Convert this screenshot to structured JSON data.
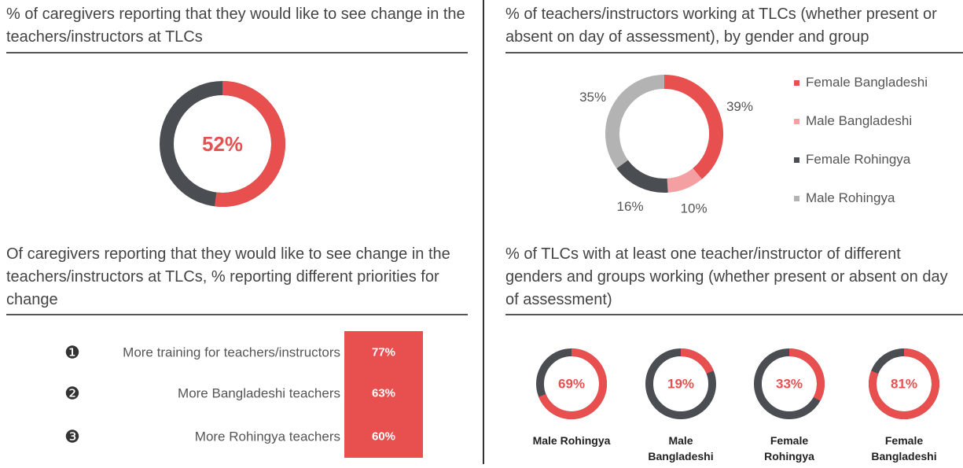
{
  "chart_data": [
    {
      "type": "single-donut",
      "title": "% of caregivers reporting that they would like to see change in the teachers/instructors at TLCs",
      "values": [
        52
      ],
      "value_labels": [
        "52%"
      ],
      "color": "#e84f4f",
      "rest_color": "#4a4d52"
    },
    {
      "type": "ranked-list",
      "title": "Of caregivers reporting that they would like to see change in the teachers/instructors at TLCs, % reporting different priorities for change",
      "markers": [
        "❶",
        "❷",
        "❸"
      ],
      "categories": [
        "More training for teachers/instructors",
        "More Bangladeshi teachers",
        "More Rohingya teachers"
      ],
      "values": [
        77,
        63,
        60
      ],
      "value_labels": [
        "77%",
        "63%",
        "60%"
      ],
      "color": "#e84f4f"
    },
    {
      "type": "donut",
      "title": "% of teachers/instructors working at TLCs (whether present or absent on day of assessment), by gender and group",
      "series": [
        {
          "name": "Female Bangladeshi",
          "color": "#e84f4f",
          "values": [
            39
          ],
          "value_labels": [
            "39%"
          ]
        },
        {
          "name": "Male Bangladeshi",
          "color": "#f4a0a3",
          "values": [
            10
          ],
          "value_labels": [
            "10%"
          ]
        },
        {
          "name": "Female Rohingya",
          "color": "#4a4d52",
          "values": [
            16
          ],
          "value_labels": [
            "16%"
          ]
        },
        {
          "name": "Male Rohingya",
          "color": "#b3b3b3",
          "values": [
            35
          ],
          "value_labels": [
            "35%"
          ]
        }
      ],
      "legend": "right"
    },
    {
      "type": "donut-multiples",
      "title": "% of TLCs with at least one teacher/instructor of different genders and groups working (whether present or absent on day of assessment)",
      "categories": [
        "Male Rohingya",
        "Male Bangladeshi",
        "Female Rohingya",
        "Female Bangladeshi"
      ],
      "values": [
        69,
        19,
        33,
        81
      ],
      "value_labels": [
        "69%",
        "19%",
        "33%",
        "81%"
      ],
      "color": "#e84f4f",
      "rest_color": "#4a4d52"
    }
  ]
}
